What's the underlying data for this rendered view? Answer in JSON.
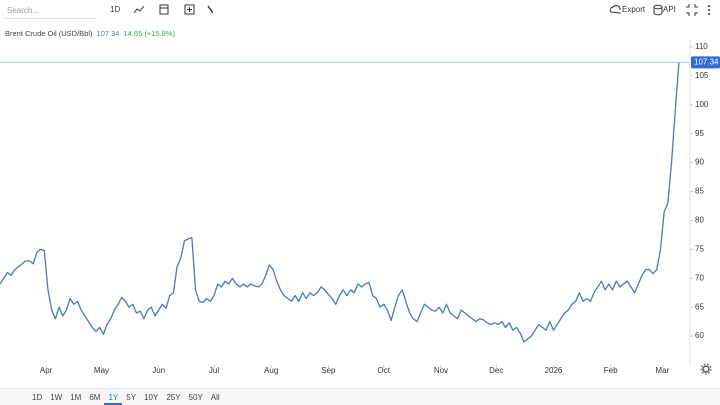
{
  "toolbar": {
    "search_placeholder": "Search...",
    "interval": "1D",
    "export": "Export",
    "api": "API"
  },
  "chart_data": {
    "type": "line",
    "title": "Brent Crude Oil (USD/Bbl)",
    "change": "14.65 (+15.8%)",
    "x": [
      0,
      2,
      4,
      6,
      8,
      10,
      12,
      14,
      16,
      18,
      20,
      22,
      24,
      26,
      28,
      30,
      32,
      34,
      36,
      38,
      40,
      42,
      44,
      46,
      48,
      50,
      52,
      54,
      56,
      58,
      60,
      62,
      64,
      66,
      68,
      70,
      72,
      74,
      76,
      78,
      80,
      82,
      84,
      86,
      88,
      90,
      92,
      94,
      96,
      98,
      100,
      102,
      104,
      106,
      108,
      110,
      112,
      114,
      116,
      118,
      120,
      122,
      124,
      126,
      128,
      130,
      132,
      134,
      136,
      138,
      140,
      142,
      144,
      146,
      148,
      150,
      152,
      154,
      156,
      158,
      160,
      162,
      164,
      166,
      168,
      170,
      172,
      174,
      176,
      178,
      180,
      182,
      184,
      186,
      188,
      190,
      192,
      194,
      196,
      198,
      200,
      202,
      204,
      206,
      208,
      210,
      212,
      214,
      216,
      218,
      220,
      222,
      224,
      226,
      228,
      230,
      232,
      234,
      236,
      238,
      240,
      242,
      244,
      246,
      248,
      250,
      252,
      254,
      256,
      258,
      260,
      262,
      264,
      266,
      268,
      270,
      272,
      274,
      276,
      278,
      280,
      282,
      284,
      286,
      288,
      290,
      292,
      294,
      296,
      298,
      300,
      302,
      304,
      306,
      308,
      310,
      312,
      314,
      316,
      318,
      320,
      322,
      324,
      326,
      328,
      330,
      332,
      334,
      336,
      338,
      340,
      342,
      344,
      346,
      348,
      350,
      352,
      354,
      356,
      358,
      360,
      362,
      364,
      366,
      368
    ],
    "series": [
      {
        "name": "Brent Crude Oil (USD/Bbl)",
        "color": "#4a78c2",
        "values": [
          69,
          70,
          71,
          70.5,
          71.5,
          72,
          72.5,
          73,
          73,
          72.5,
          74.5,
          75,
          74.8,
          68,
          64.5,
          63,
          65,
          63.5,
          64.5,
          66.5,
          65.5,
          66,
          64.5,
          63.5,
          62.5,
          61.5,
          60.8,
          61.5,
          60.3,
          62,
          63,
          64.5,
          65.5,
          66.7,
          66,
          65,
          65.5,
          64,
          64.3,
          63,
          64.5,
          65,
          63.5,
          64.5,
          65.5,
          64.8,
          67,
          67.5,
          72,
          73.5,
          76.5,
          76.8,
          77,
          68,
          66,
          65.8,
          66.5,
          66,
          67,
          69,
          68.5,
          69.5,
          69,
          70,
          69,
          68.5,
          69,
          68.5,
          69,
          68.7,
          68.5,
          69,
          70.5,
          72.3,
          71.5,
          69.5,
          68,
          67,
          66.5,
          66,
          67,
          66,
          67.5,
          66.5,
          67.5,
          67,
          67.5,
          68.5,
          68,
          67.2,
          66.5,
          65.5,
          67,
          68,
          67,
          68,
          67.5,
          69,
          68.5,
          69,
          69.3,
          67,
          66.5,
          65,
          65.5,
          64.5,
          62.7,
          65,
          67,
          68,
          66,
          64,
          63,
          62.5,
          64,
          65.5,
          65,
          64.5,
          64.3,
          65,
          64,
          65.5,
          64,
          63.5,
          63,
          64.5,
          64,
          63.5,
          63,
          62.5,
          63,
          62.8,
          62.3,
          62,
          62.3,
          62,
          62.5,
          61.5,
          62.3,
          61,
          61.5,
          60.5,
          59,
          59.5,
          60,
          61,
          62,
          61.5,
          61,
          62.5,
          61,
          62,
          63,
          64,
          64.5,
          65.5,
          66,
          67.5,
          66,
          66.5,
          66,
          67.5,
          68.5,
          69.5,
          68,
          69,
          68,
          69.5,
          68.5,
          69,
          69.5,
          68.5,
          67.5,
          69,
          70.5,
          71.5,
          71.5,
          70.8,
          71.5,
          75,
          81.5,
          83,
          90,
          99,
          107.34
        ]
      }
    ],
    "xlim": [
      0,
      374
    ],
    "xticks": [
      {
        "value": 25,
        "label": "Apr"
      },
      {
        "value": 55,
        "label": "May"
      },
      {
        "value": 86,
        "label": "Jun"
      },
      {
        "value": 116,
        "label": "Jul"
      },
      {
        "value": 147,
        "label": "Aug"
      },
      {
        "value": 178,
        "label": "Sep"
      },
      {
        "value": 208,
        "label": "Oct"
      },
      {
        "value": 239,
        "label": "Nov"
      },
      {
        "value": 269,
        "label": "Dec"
      },
      {
        "value": 300,
        "label": "2026"
      },
      {
        "value": 331,
        "label": "Feb"
      },
      {
        "value": 359,
        "label": "Mar"
      }
    ],
    "ylim": [
      55,
      111.2
    ],
    "yticks": [
      60,
      65,
      70,
      75,
      80,
      85,
      90,
      95,
      100,
      105,
      110
    ],
    "change_color": "#3aa64a",
    "last_color": "#2f6bd1"
  },
  "ranges": [
    "1D",
    "1W",
    "1M",
    "6M",
    "1Y",
    "5Y",
    "10Y",
    "25Y",
    "50Y",
    "All"
  ],
  "active_range": "1Y"
}
